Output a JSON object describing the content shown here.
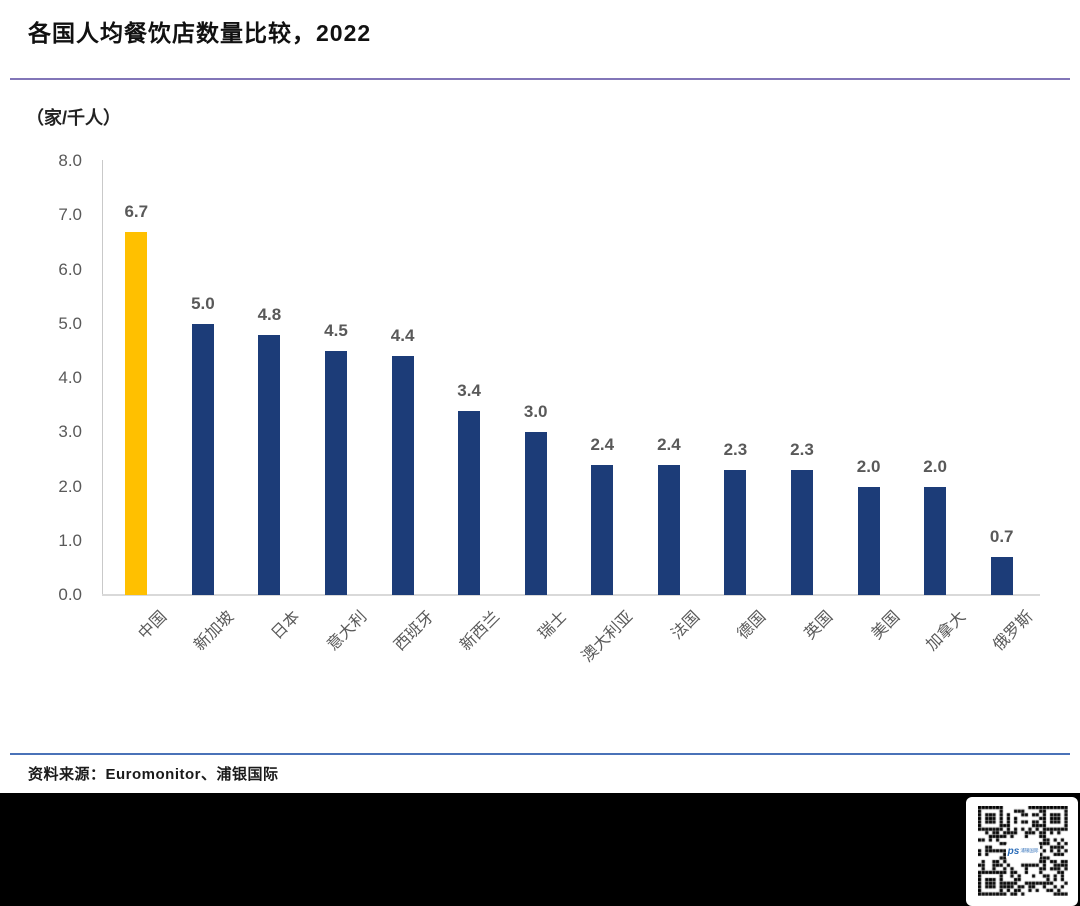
{
  "header": {
    "title": "各国人均餐饮店数量比较，2022"
  },
  "chart_data": {
    "type": "bar",
    "title": "各国人均餐饮店数量比较，2022",
    "ylabel": "（家/千人）",
    "xlabel": "",
    "categories": [
      "中国",
      "新加坡",
      "日本",
      "意大利",
      "西班牙",
      "新西兰",
      "瑞士",
      "澳大利亚",
      "法国",
      "德国",
      "英国",
      "美国",
      "加拿大",
      "俄罗斯"
    ],
    "values": [
      6.7,
      5.0,
      4.8,
      4.5,
      4.4,
      3.4,
      3.0,
      2.4,
      2.4,
      2.3,
      2.3,
      2.0,
      2.0,
      0.7
    ],
    "value_labels": [
      "6.7",
      "5.0",
      "4.8",
      "4.5",
      "4.4",
      "3.4",
      "3.0",
      "2.4",
      "2.4",
      "2.3",
      "2.3",
      "2.0",
      "2.0",
      "0.7"
    ],
    "ylim": [
      0,
      8
    ],
    "yticks": [
      "8.0",
      "7.0",
      "6.0",
      "5.0",
      "4.0",
      "3.0",
      "2.0",
      "1.0",
      "0.0"
    ],
    "grid": false,
    "legend_position": "none",
    "highlight_index": 0,
    "bar_color": "#1C3C78",
    "highlight_color": "#FFC000"
  },
  "footer": {
    "source": "资料来源：Euromonitor、浦银国际"
  },
  "qr": {
    "logo_text": "ps",
    "logo_subtext": "浦银国际"
  },
  "colors": {
    "top_rule": "#8276b8",
    "bottom_rule": "#4a72b8",
    "axis_line": "#d9d9d9",
    "axis_text": "#595959",
    "title_text": "#111111"
  }
}
